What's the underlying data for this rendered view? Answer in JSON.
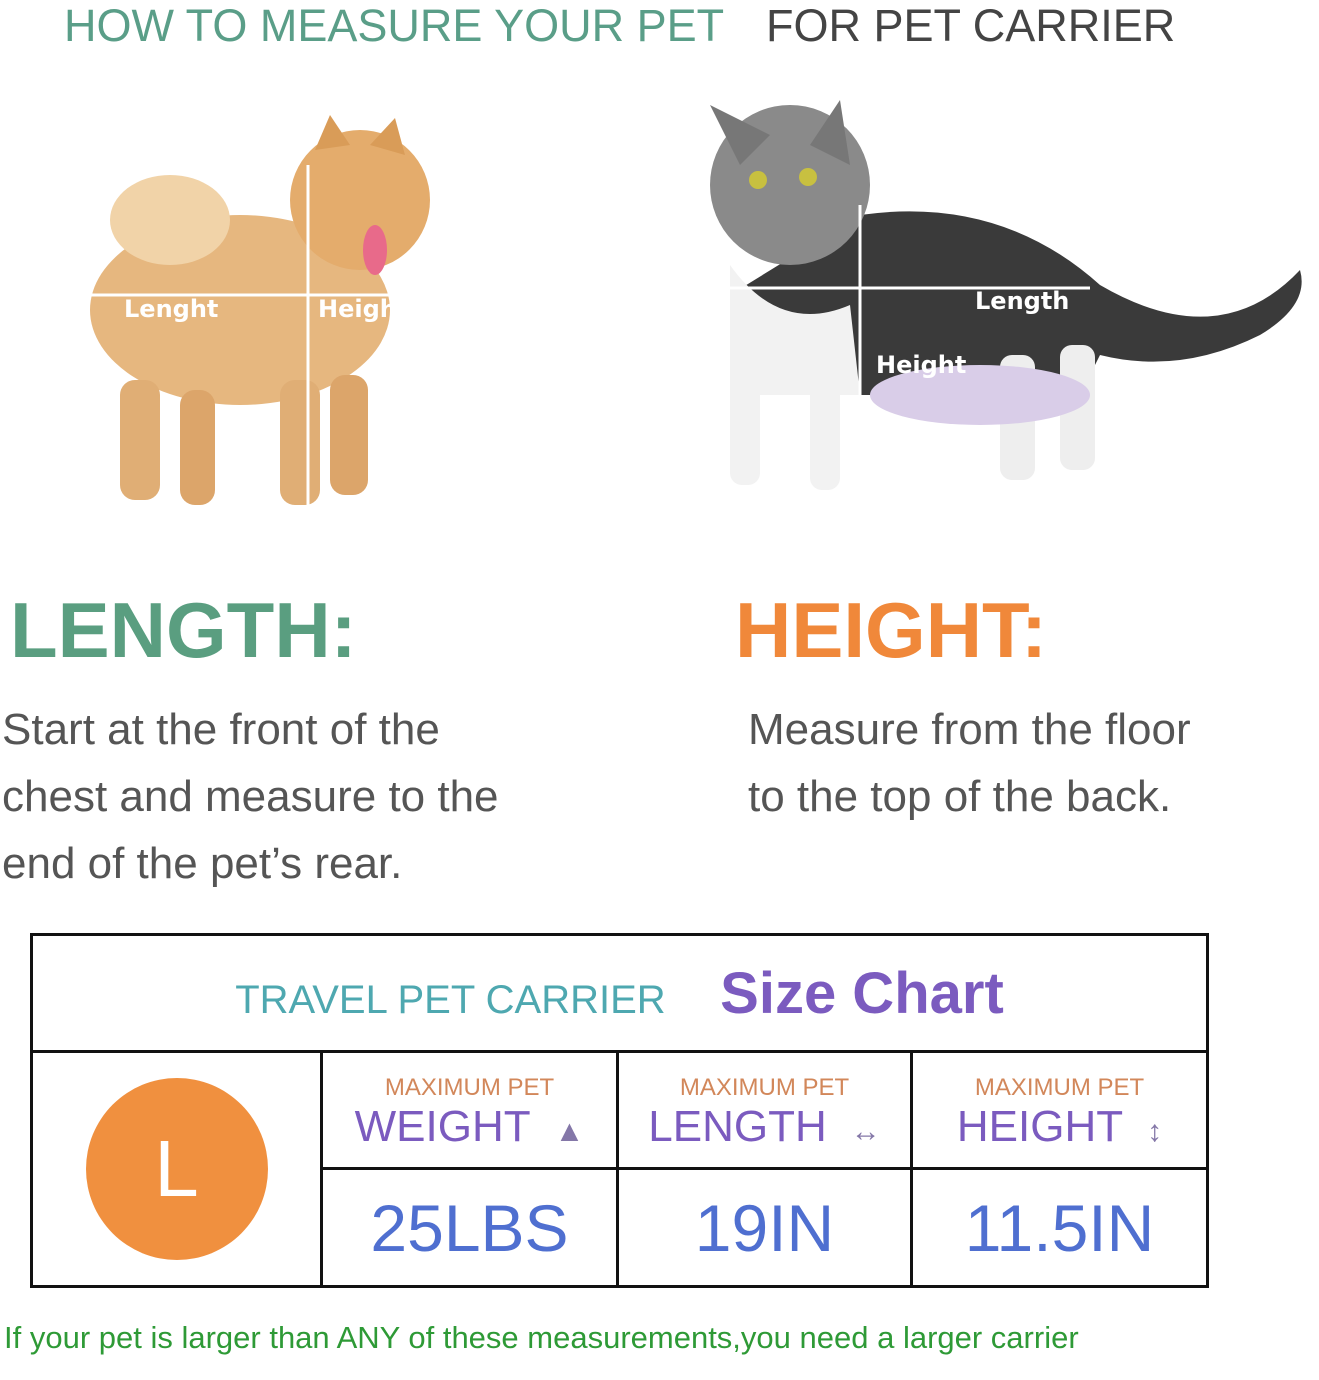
{
  "header": {
    "left_title": "HOW TO MEASURE YOUR PET",
    "right_title": "FOR PET CARRIER"
  },
  "dog": {
    "length_label": "Lenght",
    "height_label": "Height"
  },
  "cat": {
    "length_label": "Length",
    "height_label": "Height"
  },
  "length": {
    "title": "LENGTH:",
    "lines": [
      "Start at the front of the",
      "chest and measure to the",
      "end of the pet’s rear."
    ]
  },
  "height": {
    "title": "HEIGHT:",
    "lines": [
      "Measure from the floor",
      "to the top of the back."
    ]
  },
  "size_chart": {
    "title_left": "TRAVEL PET CARRIER",
    "title_right": "Size Chart",
    "size": "L",
    "size_color": "#f0903f",
    "columns": [
      {
        "caption": "MAXIMUM PET",
        "label": "WEIGHT",
        "icon": "weight-icon",
        "value": "25LBS"
      },
      {
        "caption": "MAXIMUM PET",
        "label": "LENGTH",
        "icon": "horizontal-arrow-icon",
        "value": "19IN"
      },
      {
        "caption": "MAXIMUM PET",
        "label": "HEIGHT",
        "icon": "vertical-arrow-icon",
        "value": "11.5IN"
      }
    ]
  },
  "footer": "If your pet is larger than ANY of these measurements,you need a larger carrier"
}
